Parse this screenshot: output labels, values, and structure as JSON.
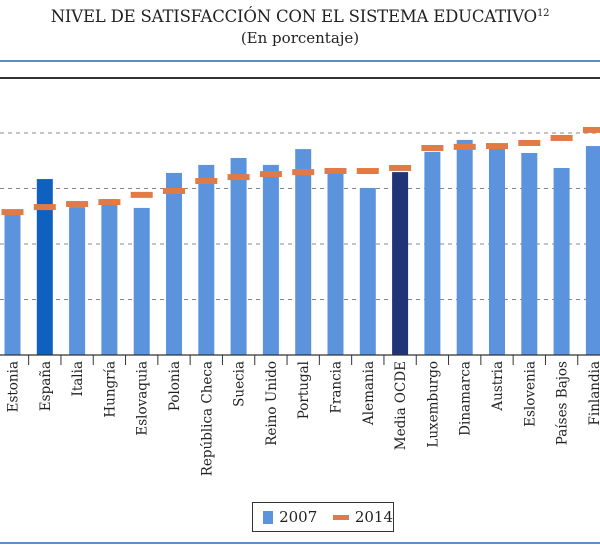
{
  "chart_data": {
    "type": "bar",
    "title": "NIVEL DE SATISFACCIÓN CON EL SISTEMA EDUCATIVO",
    "title_superscript": "12",
    "subtitle": "(En porcentaje)",
    "xlabel": "",
    "ylabel": "",
    "ylim": [
      0,
      80
    ],
    "gridlines": [
      20,
      40,
      60,
      80
    ],
    "grid": true,
    "legend_position": "bottom-center",
    "categories": [
      "Estonia",
      "España",
      "Italia",
      "Hungría",
      "Eslovaquia",
      "Polonia",
      "República Checa",
      "Suecia",
      "Reino Unido",
      "Portugal",
      "Francia",
      "Alemania",
      "Media OCDE",
      "Luxemburgo",
      "Dinamarca",
      "Austria",
      "Eslovenia",
      "Países Bajos",
      "Finlandia"
    ],
    "highlight": {
      "España": "#1060c0",
      "Media OCDE": "#1f3578"
    },
    "series": [
      {
        "name": "2007",
        "kind": "bar",
        "color": "#5b93dd",
        "values": [
          50.5,
          63.4,
          53.3,
          56.2,
          53.0,
          65.6,
          68.5,
          71.0,
          68.5,
          74.2,
          67.4,
          60.2,
          65.9,
          73.2,
          77.5,
          74.6,
          72.8,
          67.4,
          75.3
        ]
      },
      {
        "name": "2014",
        "kind": "marker",
        "color": "#e07b48",
        "values": [
          51.5,
          53.3,
          54.4,
          55.1,
          57.7,
          59.1,
          62.7,
          64.1,
          65.2,
          65.9,
          66.3,
          66.3,
          67.4,
          74.6,
          75.0,
          75.3,
          76.4,
          78.2,
          81.1
        ]
      }
    ]
  },
  "legend": {
    "items": [
      {
        "label": "2007",
        "color": "#5b93dd"
      },
      {
        "label": "2014",
        "color": "#e07b48"
      }
    ]
  }
}
